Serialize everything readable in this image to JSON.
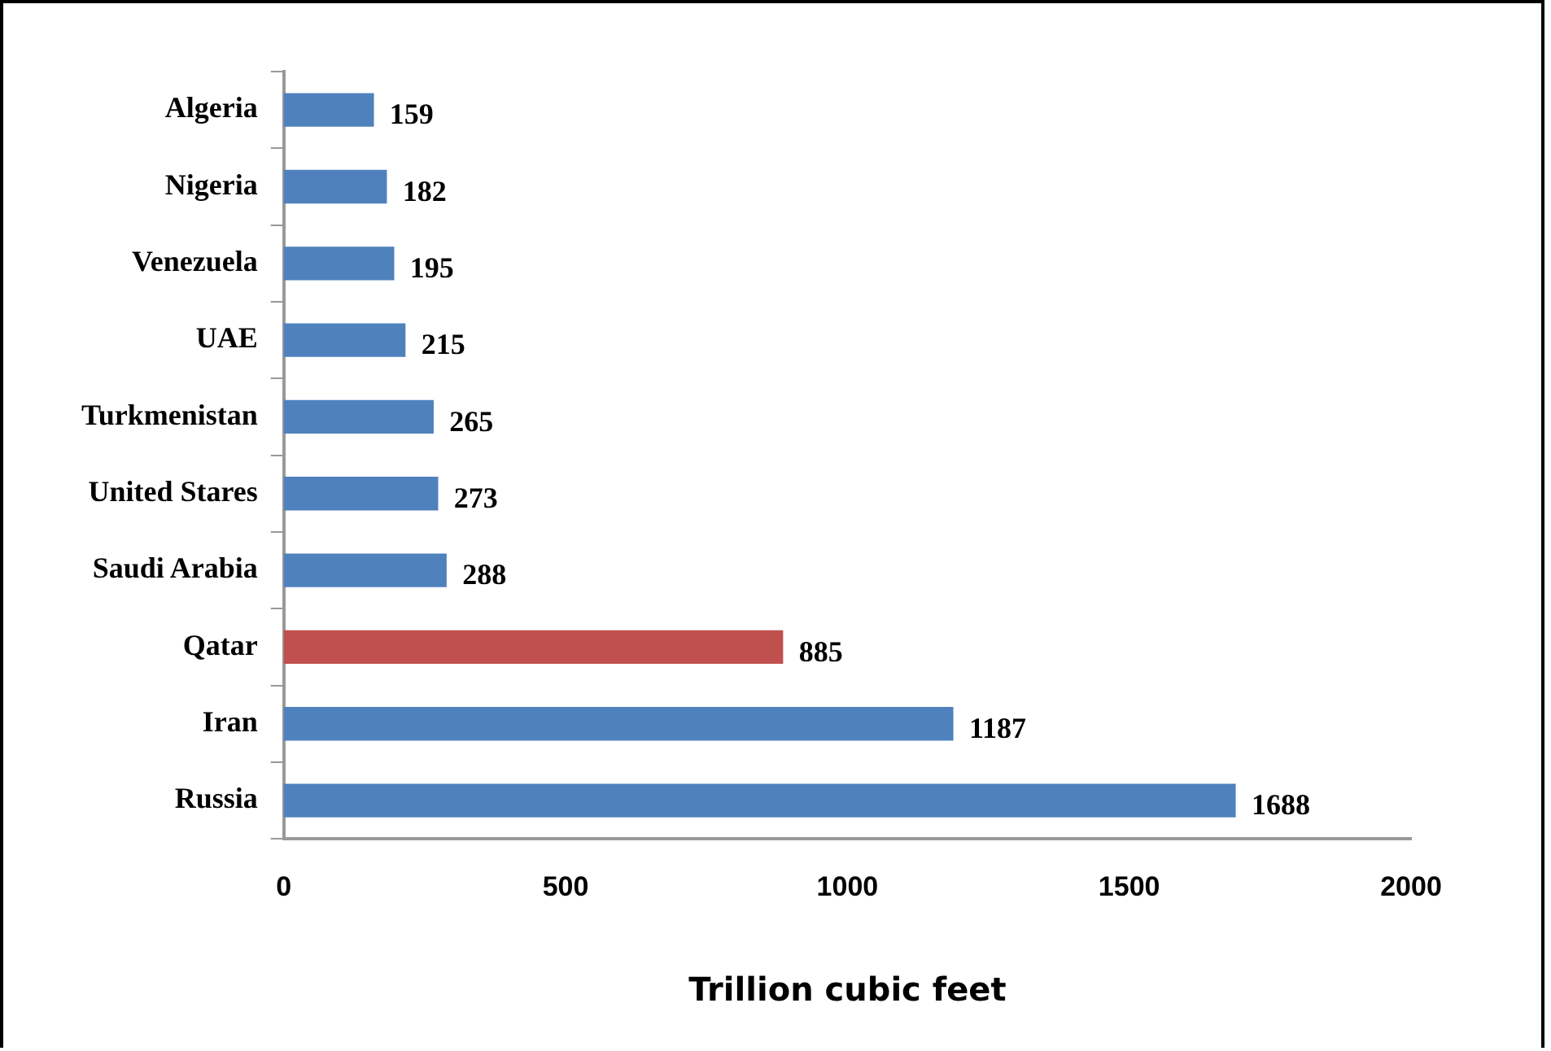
{
  "chart_data": {
    "type": "bar",
    "orientation": "horizontal",
    "xlabel": "Trillion cubic feet",
    "categories": [
      "Algeria",
      "Nigeria",
      "Venezuela",
      "UAE",
      "Turkmenistan",
      "United Stares",
      "Saudi Arabia",
      "Qatar",
      "Iran",
      "Russia"
    ],
    "values": [
      159,
      182,
      195,
      215,
      265,
      273,
      288,
      885,
      1187,
      1688
    ],
    "colors": [
      "#4f81bd",
      "#4f81bd",
      "#4f81bd",
      "#4f81bd",
      "#4f81bd",
      "#4f81bd",
      "#4f81bd",
      "#c0504d",
      "#4f81bd",
      "#4f81bd"
    ],
    "xlim": [
      0,
      2000
    ],
    "xticks": [
      0,
      500,
      1000,
      1500,
      2000
    ],
    "data_labels": true,
    "grid": false,
    "legend": false
  }
}
